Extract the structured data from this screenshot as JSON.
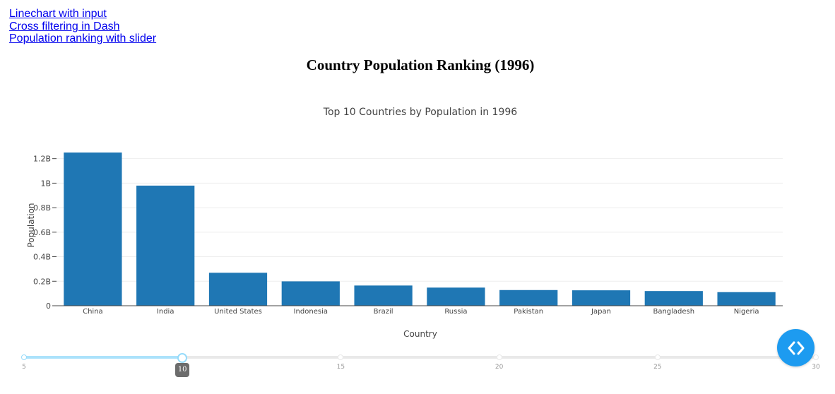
{
  "nav": {
    "links": [
      "Linechart with input",
      "Cross filtering in Dash",
      "Population ranking with slider"
    ]
  },
  "page": {
    "heading": "Country Population Ranking (1996)"
  },
  "chart_data": {
    "type": "bar",
    "title": "Top 10 Countries by Population in 1996",
    "xlabel": "Country",
    "ylabel": "Population",
    "categories": [
      "China",
      "India",
      "United States",
      "Indonesia",
      "Brazil",
      "Russia",
      "Pakistan",
      "Japan",
      "Bangladesh",
      "Nigeria"
    ],
    "values": [
      1250000000,
      980000000,
      269000000,
      199000000,
      165000000,
      148000000,
      128000000,
      126000000,
      120000000,
      111000000
    ],
    "ylim": [
      0,
      1250000000
    ],
    "yticks": [
      {
        "value": 0,
        "label": "0"
      },
      {
        "value": 200000000,
        "label": "0.2B"
      },
      {
        "value": 400000000,
        "label": "0.4B"
      },
      {
        "value": 600000000,
        "label": "0.6B"
      },
      {
        "value": 800000000,
        "label": "0.8B"
      },
      {
        "value": 1000000000,
        "label": "1B"
      },
      {
        "value": 1200000000,
        "label": "1.2B"
      }
    ],
    "grid": true,
    "bar_color": "#1f77b4"
  },
  "slider": {
    "min": 5,
    "max": 30,
    "value": 10,
    "value_label": "10",
    "marks": [
      {
        "value": 5,
        "label": "5"
      },
      {
        "value": 10,
        "label": "10"
      },
      {
        "value": 15,
        "label": "15"
      },
      {
        "value": 20,
        "label": "20"
      },
      {
        "value": 25,
        "label": "25"
      },
      {
        "value": 30,
        "label": "30"
      }
    ],
    "track_color": "#abe2fb"
  },
  "debug_button": {
    "icon": "code-brackets-icon",
    "color": "#1d9bf0"
  }
}
